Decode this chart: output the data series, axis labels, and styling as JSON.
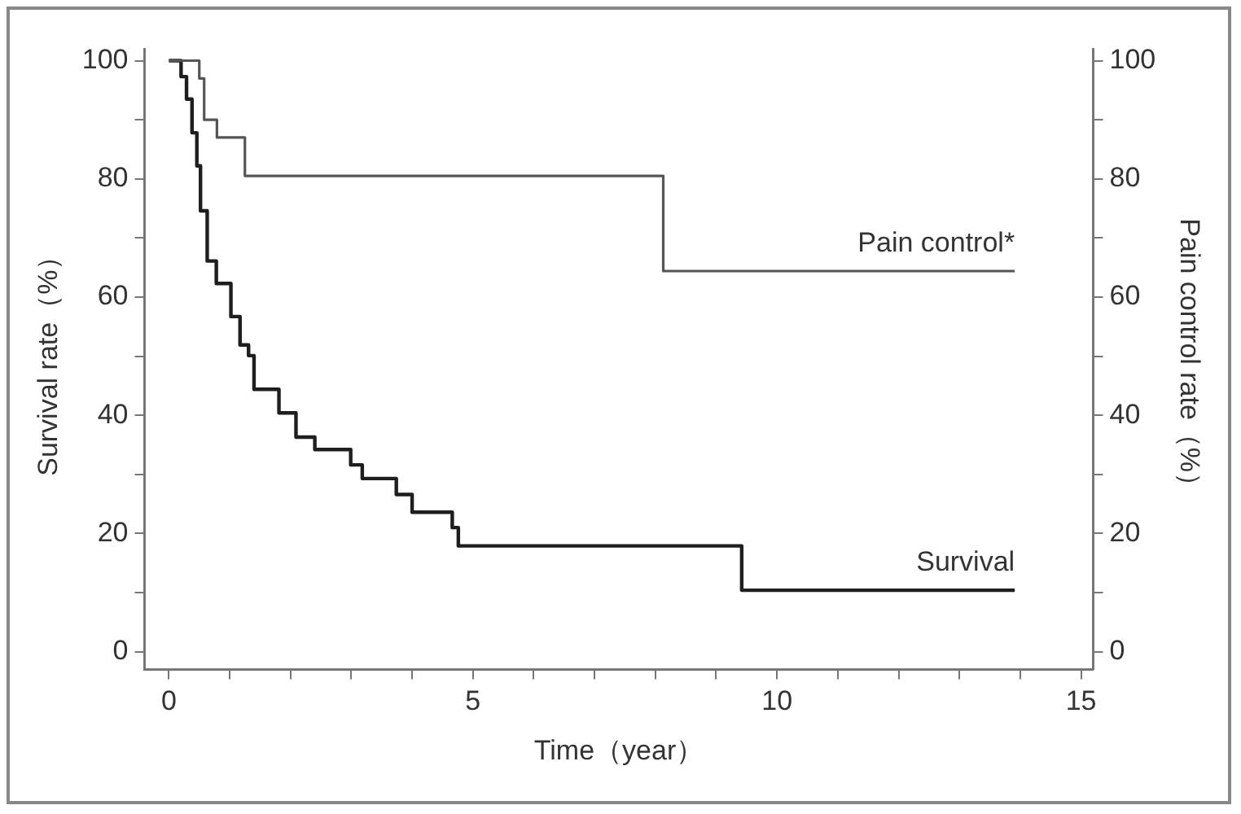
{
  "chart_data": {
    "type": "step",
    "xlabel": "Time（year）",
    "ylabel": "Survival rate（%）",
    "y2label": "Pain control rate（%）",
    "xlim": [
      -0.4,
      15.2
    ],
    "xticks": [
      0,
      {
        "value": 1,
        "label": null
      },
      {
        "value": 2,
        "label": null
      },
      {
        "value": 3,
        "label": null
      },
      {
        "value": 4,
        "label": null
      },
      5,
      {
        "value": 6,
        "label": null
      },
      {
        "value": 7,
        "label": null
      },
      {
        "value": 8,
        "label": null
      },
      {
        "value": 9,
        "label": null
      },
      10,
      {
        "value": 11,
        "label": null
      },
      {
        "value": 12,
        "label": null
      },
      {
        "value": 13,
        "label": null
      },
      {
        "value": 14,
        "label": null
      },
      15
    ],
    "ylim": [
      -3,
      102
    ],
    "yticks": [
      0,
      {
        "value": 10,
        "label": null
      },
      20,
      {
        "value": 30,
        "label": null
      },
      40,
      {
        "value": 50,
        "label": null
      },
      60,
      {
        "value": 70,
        "label": null
      },
      80,
      {
        "value": 90,
        "label": null
      },
      100
    ],
    "y2lim": [
      -3,
      102
    ],
    "y2ticks": [
      0,
      {
        "value": 10,
        "label": null
      },
      20,
      {
        "value": 30,
        "label": null
      },
      40,
      {
        "value": 50,
        "label": null
      },
      60,
      {
        "value": 70,
        "label": null
      },
      80,
      {
        "value": 90,
        "label": null
      },
      100
    ],
    "grid": false,
    "legend": false,
    "marker": "none",
    "line_style": "solid",
    "series": [
      {
        "name": "Pain control*",
        "color": "#555555",
        "axis": "y2",
        "x": [
          0,
          0.5,
          0.58,
          0.79,
          1.25,
          8.13,
          13.91
        ],
        "values": [
          100,
          97,
          90,
          87,
          80.5,
          64.4,
          64.4
        ]
      },
      {
        "name": "Survival",
        "color": "#1e1e1e",
        "x": [
          0,
          0.2,
          0.29,
          0.38,
          0.46,
          0.52,
          0.63,
          0.78,
          1.02,
          1.17,
          1.31,
          1.4,
          1.81,
          2.09,
          2.4,
          2.99,
          3.18,
          3.74,
          4.0,
          4.66,
          4.76,
          9.42,
          13.91
        ],
        "values": [
          100,
          97.3,
          93.5,
          87.8,
          82.2,
          74.6,
          66.1,
          62.3,
          56.7,
          51.9,
          50.1,
          44.4,
          40.4,
          36.3,
          34.2,
          31.6,
          29.3,
          26.6,
          23.6,
          21,
          17.9,
          10.4,
          10.4
        ]
      }
    ]
  }
}
